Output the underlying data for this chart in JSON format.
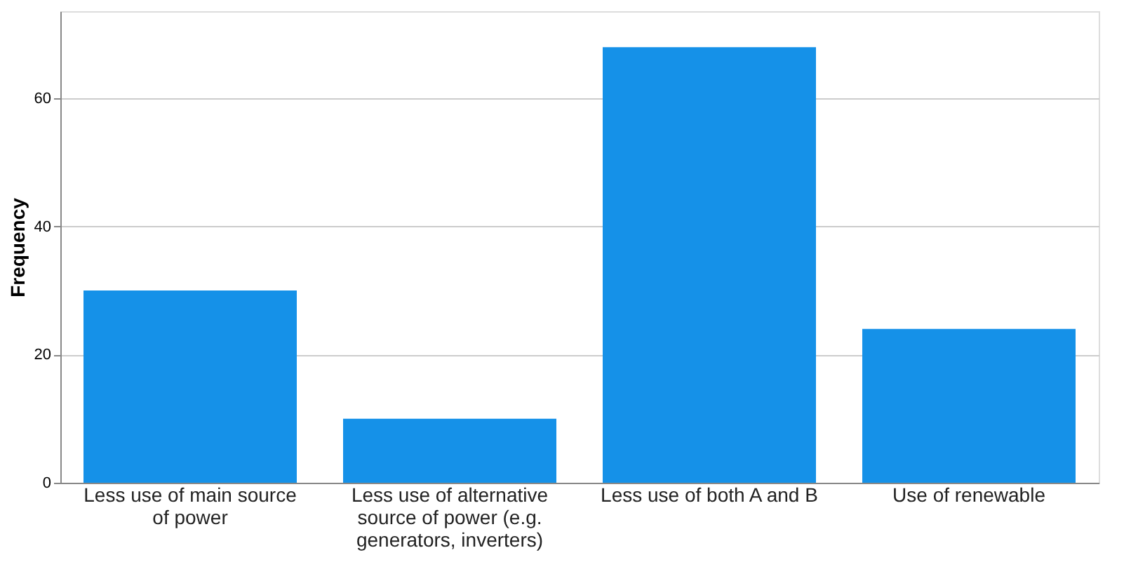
{
  "chart_data": {
    "type": "bar",
    "ylabel": "Frequency",
    "categories": [
      "Less use of main source of power",
      "Less use of alternative source of power (e.g. generators, inverters)",
      "Less use of both A and B",
      "Use of renewable"
    ],
    "values": [
      30,
      10,
      68,
      24
    ],
    "color": "#1591e8",
    "ylim": [
      0,
      73.6
    ],
    "yticks": [
      0,
      20,
      40,
      60
    ],
    "grid": "y"
  }
}
